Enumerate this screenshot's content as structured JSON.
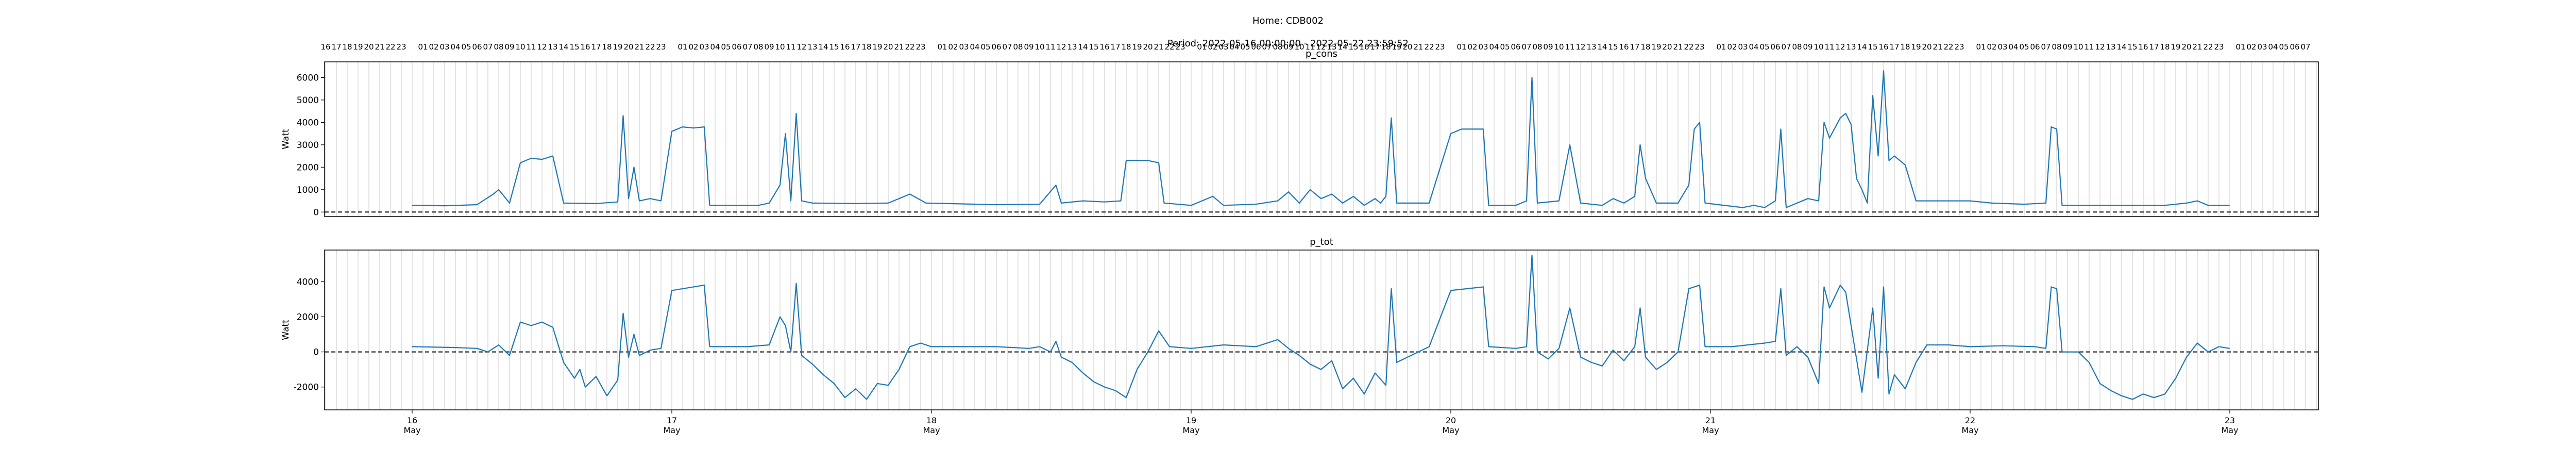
{
  "figure": {
    "title_line1": "Home: CDB002",
    "title_line2": "Period: 2022-05-16 00:00:00 - 2022-05-22 23:59:52"
  },
  "chart_data": [
    {
      "type": "line",
      "title": "p_cons",
      "ylabel": "Watt",
      "xlabel": "",
      "ylim": [
        -200,
        6700
      ],
      "yticks": [
        0,
        1000,
        2000,
        3000,
        4000,
        5000,
        6000
      ],
      "hline": 0,
      "grid": "vertical hourly",
      "series_color": "#1f77b4",
      "x_start": "2022-05-16 00:00",
      "x_end": "2022-05-22 23:59",
      "top_hour_labels_start": 16,
      "points": [
        [
          "2022-05-16 00:00",
          300
        ],
        [
          "2022-05-16 03:00",
          280
        ],
        [
          "2022-05-16 06:00",
          330
        ],
        [
          "2022-05-16 07:30",
          800
        ],
        [
          "2022-05-16 08:00",
          1000
        ],
        [
          "2022-05-16 09:00",
          400
        ],
        [
          "2022-05-16 10:00",
          2200
        ],
        [
          "2022-05-16 11:00",
          2400
        ],
        [
          "2022-05-16 12:00",
          2350
        ],
        [
          "2022-05-16 13:00",
          2500
        ],
        [
          "2022-05-16 14:00",
          400
        ],
        [
          "2022-05-16 17:00",
          380
        ],
        [
          "2022-05-16 19:00",
          450
        ],
        [
          "2022-05-16 19:30",
          4300
        ],
        [
          "2022-05-16 20:00",
          600
        ],
        [
          "2022-05-16 20:30",
          2000
        ],
        [
          "2022-05-16 21:00",
          500
        ],
        [
          "2022-05-16 22:00",
          600
        ],
        [
          "2022-05-16 23:00",
          500
        ],
        [
          "2022-05-17 00:00",
          3600
        ],
        [
          "2022-05-17 01:00",
          3800
        ],
        [
          "2022-05-17 02:00",
          3750
        ],
        [
          "2022-05-17 03:00",
          3800
        ],
        [
          "2022-05-17 03:30",
          300
        ],
        [
          "2022-05-17 08:00",
          300
        ],
        [
          "2022-05-17 09:00",
          400
        ],
        [
          "2022-05-17 10:00",
          1200
        ],
        [
          "2022-05-17 10:30",
          3500
        ],
        [
          "2022-05-17 11:00",
          500
        ],
        [
          "2022-05-17 11:30",
          4400
        ],
        [
          "2022-05-17 12:00",
          500
        ],
        [
          "2022-05-17 13:00",
          400
        ],
        [
          "2022-05-17 17:00",
          380
        ],
        [
          "2022-05-17 20:00",
          400
        ],
        [
          "2022-05-17 22:00",
          800
        ],
        [
          "2022-05-17 23:30",
          400
        ],
        [
          "2022-05-18 06:00",
          330
        ],
        [
          "2022-05-18 10:00",
          350
        ],
        [
          "2022-05-18 11:30",
          1200
        ],
        [
          "2022-05-18 12:00",
          400
        ],
        [
          "2022-05-18 14:00",
          500
        ],
        [
          "2022-05-18 16:00",
          450
        ],
        [
          "2022-05-18 17:30",
          500
        ],
        [
          "2022-05-18 18:00",
          2300
        ],
        [
          "2022-05-18 20:00",
          2300
        ],
        [
          "2022-05-18 21:00",
          2200
        ],
        [
          "2022-05-18 21:30",
          400
        ],
        [
          "2022-05-19 00:00",
          300
        ],
        [
          "2022-05-19 01:00",
          500
        ],
        [
          "2022-05-19 02:00",
          700
        ],
        [
          "2022-05-19 03:00",
          300
        ],
        [
          "2022-05-19 06:00",
          350
        ],
        [
          "2022-05-19 08:00",
          500
        ],
        [
          "2022-05-19 09:00",
          900
        ],
        [
          "2022-05-19 10:00",
          400
        ],
        [
          "2022-05-19 11:00",
          1000
        ],
        [
          "2022-05-19 12:00",
          600
        ],
        [
          "2022-05-19 13:00",
          800
        ],
        [
          "2022-05-19 14:00",
          400
        ],
        [
          "2022-05-19 15:00",
          700
        ],
        [
          "2022-05-19 16:00",
          300
        ],
        [
          "2022-05-19 17:00",
          600
        ],
        [
          "2022-05-19 17:30",
          400
        ],
        [
          "2022-05-19 18:00",
          700
        ],
        [
          "2022-05-19 18:30",
          4200
        ],
        [
          "2022-05-19 19:00",
          400
        ],
        [
          "2022-05-19 22:00",
          400
        ],
        [
          "2022-05-20 00:00",
          3500
        ],
        [
          "2022-05-20 01:00",
          3700
        ],
        [
          "2022-05-20 03:00",
          3700
        ],
        [
          "2022-05-20 03:30",
          300
        ],
        [
          "2022-05-20 06:00",
          300
        ],
        [
          "2022-05-20 07:00",
          500
        ],
        [
          "2022-05-20 07:30",
          6000
        ],
        [
          "2022-05-20 08:00",
          400
        ],
        [
          "2022-05-20 10:00",
          500
        ],
        [
          "2022-05-20 11:00",
          3000
        ],
        [
          "2022-05-20 12:00",
          400
        ],
        [
          "2022-05-20 14:00",
          300
        ],
        [
          "2022-05-20 15:00",
          600
        ],
        [
          "2022-05-20 16:00",
          400
        ],
        [
          "2022-05-20 17:00",
          700
        ],
        [
          "2022-05-20 17:30",
          3000
        ],
        [
          "2022-05-20 18:00",
          1500
        ],
        [
          "2022-05-20 19:00",
          400
        ],
        [
          "2022-05-20 21:00",
          400
        ],
        [
          "2022-05-20 22:00",
          1200
        ],
        [
          "2022-05-20 22:30",
          3700
        ],
        [
          "2022-05-20 23:00",
          4000
        ],
        [
          "2022-05-20 23:30",
          400
        ],
        [
          "2022-05-21 03:00",
          200
        ],
        [
          "2022-05-21 04:00",
          300
        ],
        [
          "2022-05-21 05:00",
          200
        ],
        [
          "2022-05-21 06:00",
          500
        ],
        [
          "2022-05-21 06:30",
          3700
        ],
        [
          "2022-05-21 07:00",
          200
        ],
        [
          "2022-05-21 08:00",
          400
        ],
        [
          "2022-05-21 09:00",
          600
        ],
        [
          "2022-05-21 10:00",
          500
        ],
        [
          "2022-05-21 10:30",
          4000
        ],
        [
          "2022-05-21 11:00",
          3300
        ],
        [
          "2022-05-21 12:00",
          4200
        ],
        [
          "2022-05-21 12:30",
          4400
        ],
        [
          "2022-05-21 13:00",
          3900
        ],
        [
          "2022-05-21 13:30",
          1500
        ],
        [
          "2022-05-21 14:00",
          1000
        ],
        [
          "2022-05-21 14:30",
          400
        ],
        [
          "2022-05-21 15:00",
          5200
        ],
        [
          "2022-05-21 15:30",
          2500
        ],
        [
          "2022-05-21 16:00",
          6300
        ],
        [
          "2022-05-21 16:30",
          2300
        ],
        [
          "2022-05-21 17:00",
          2500
        ],
        [
          "2022-05-21 18:00",
          2100
        ],
        [
          "2022-05-21 19:00",
          500
        ],
        [
          "2022-05-21 21:00",
          500
        ],
        [
          "2022-05-22 00:00",
          500
        ],
        [
          "2022-05-22 02:00",
          400
        ],
        [
          "2022-05-22 05:00",
          350
        ],
        [
          "2022-05-22 07:00",
          400
        ],
        [
          "2022-05-22 07:30",
          3800
        ],
        [
          "2022-05-22 08:00",
          3700
        ],
        [
          "2022-05-22 08:30",
          300
        ],
        [
          "2022-05-22 18:00",
          300
        ],
        [
          "2022-05-22 20:00",
          400
        ],
        [
          "2022-05-22 21:00",
          500
        ],
        [
          "2022-05-22 22:00",
          300
        ],
        [
          "2022-05-22 23:59",
          300
        ]
      ]
    },
    {
      "type": "line",
      "title": "p_tot",
      "ylabel": "Watt",
      "xlabel": "",
      "ylim": [
        -3300,
        5800
      ],
      "yticks": [
        -2000,
        0,
        2000,
        4000
      ],
      "hline": 0,
      "grid": "vertical hourly",
      "series_color": "#1f77b4",
      "x_start": "2022-05-16 00:00",
      "x_end": "2022-05-22 23:59",
      "date_ticks": [
        {
          "day": "16",
          "month": "May"
        },
        {
          "day": "17",
          "month": "May"
        },
        {
          "day": "18",
          "month": "May"
        },
        {
          "day": "19",
          "month": "May"
        },
        {
          "day": "20",
          "month": "May"
        },
        {
          "day": "21",
          "month": "May"
        },
        {
          "day": "22",
          "month": "May"
        },
        {
          "day": "23",
          "month": "May"
        }
      ],
      "points": [
        [
          "2022-05-16 00:00",
          300
        ],
        [
          "2022-05-16 04:00",
          250
        ],
        [
          "2022-05-16 06:00",
          200
        ],
        [
          "2022-05-16 07:00",
          0
        ],
        [
          "2022-05-16 08:00",
          400
        ],
        [
          "2022-05-16 09:00",
          -200
        ],
        [
          "2022-05-16 10:00",
          1700
        ],
        [
          "2022-05-16 11:00",
          1500
        ],
        [
          "2022-05-16 12:00",
          1700
        ],
        [
          "2022-05-16 13:00",
          1400
        ],
        [
          "2022-05-16 14:00",
          -600
        ],
        [
          "2022-05-16 15:00",
          -1500
        ],
        [
          "2022-05-16 15:30",
          -1000
        ],
        [
          "2022-05-16 16:00",
          -2000
        ],
        [
          "2022-05-16 17:00",
          -1400
        ],
        [
          "2022-05-16 18:00",
          -2500
        ],
        [
          "2022-05-16 19:00",
          -1600
        ],
        [
          "2022-05-16 19:30",
          2200
        ],
        [
          "2022-05-16 20:00",
          -300
        ],
        [
          "2022-05-16 20:30",
          1000
        ],
        [
          "2022-05-16 21:00",
          -200
        ],
        [
          "2022-05-16 22:00",
          100
        ],
        [
          "2022-05-16 23:00",
          200
        ],
        [
          "2022-05-17 00:00",
          3500
        ],
        [
          "2022-05-17 03:00",
          3800
        ],
        [
          "2022-05-17 03:30",
          300
        ],
        [
          "2022-05-17 07:00",
          300
        ],
        [
          "2022-05-17 09:00",
          400
        ],
        [
          "2022-05-17 10:00",
          2000
        ],
        [
          "2022-05-17 10:30",
          1500
        ],
        [
          "2022-05-17 11:00",
          0
        ],
        [
          "2022-05-17 11:30",
          3900
        ],
        [
          "2022-05-17 12:00",
          -200
        ],
        [
          "2022-05-17 13:00",
          -700
        ],
        [
          "2022-05-17 14:00",
          -1300
        ],
        [
          "2022-05-17 15:00",
          -1800
        ],
        [
          "2022-05-17 16:00",
          -2600
        ],
        [
          "2022-05-17 17:00",
          -2100
        ],
        [
          "2022-05-17 18:00",
          -2700
        ],
        [
          "2022-05-17 19:00",
          -1800
        ],
        [
          "2022-05-17 20:00",
          -1900
        ],
        [
          "2022-05-17 21:00",
          -1000
        ],
        [
          "2022-05-17 22:00",
          300
        ],
        [
          "2022-05-17 23:00",
          500
        ],
        [
          "2022-05-18 00:00",
          300
        ],
        [
          "2022-05-18 06:00",
          300
        ],
        [
          "2022-05-18 09:00",
          200
        ],
        [
          "2022-05-18 10:00",
          300
        ],
        [
          "2022-05-18 11:00",
          0
        ],
        [
          "2022-05-18 11:30",
          600
        ],
        [
          "2022-05-18 12:00",
          -300
        ],
        [
          "2022-05-18 13:00",
          -600
        ],
        [
          "2022-05-18 14:00",
          -1200
        ],
        [
          "2022-05-18 15:00",
          -1700
        ],
        [
          "2022-05-18 16:00",
          -2000
        ],
        [
          "2022-05-18 17:00",
          -2200
        ],
        [
          "2022-05-18 18:00",
          -2600
        ],
        [
          "2022-05-18 19:00",
          -1000
        ],
        [
          "2022-05-18 20:00",
          0
        ],
        [
          "2022-05-18 21:00",
          1200
        ],
        [
          "2022-05-18 22:00",
          300
        ],
        [
          "2022-05-19 00:00",
          200
        ],
        [
          "2022-05-19 03:00",
          400
        ],
        [
          "2022-05-19 06:00",
          300
        ],
        [
          "2022-05-19 08:00",
          700
        ],
        [
          "2022-05-19 09:00",
          200
        ],
        [
          "2022-05-19 10:00",
          -200
        ],
        [
          "2022-05-19 11:00",
          -700
        ],
        [
          "2022-05-19 12:00",
          -1000
        ],
        [
          "2022-05-19 13:00",
          -500
        ],
        [
          "2022-05-19 14:00",
          -2100
        ],
        [
          "2022-05-19 15:00",
          -1500
        ],
        [
          "2022-05-19 16:00",
          -2400
        ],
        [
          "2022-05-19 17:00",
          -1200
        ],
        [
          "2022-05-19 18:00",
          -1900
        ],
        [
          "2022-05-19 18:30",
          3600
        ],
        [
          "2022-05-19 19:00",
          -600
        ],
        [
          "2022-05-19 20:00",
          -300
        ],
        [
          "2022-05-19 21:00",
          0
        ],
        [
          "2022-05-19 22:00",
          300
        ],
        [
          "2022-05-20 00:00",
          3500
        ],
        [
          "2022-05-20 03:00",
          3700
        ],
        [
          "2022-05-20 03:30",
          300
        ],
        [
          "2022-05-20 06:00",
          200
        ],
        [
          "2022-05-20 07:00",
          300
        ],
        [
          "2022-05-20 07:30",
          5500
        ],
        [
          "2022-05-20 08:00",
          0
        ],
        [
          "2022-05-20 09:00",
          -400
        ],
        [
          "2022-05-20 10:00",
          200
        ],
        [
          "2022-05-20 11:00",
          2500
        ],
        [
          "2022-05-20 12:00",
          -300
        ],
        [
          "2022-05-20 13:00",
          -600
        ],
        [
          "2022-05-20 14:00",
          -800
        ],
        [
          "2022-05-20 15:00",
          100
        ],
        [
          "2022-05-20 16:00",
          -500
        ],
        [
          "2022-05-20 17:00",
          300
        ],
        [
          "2022-05-20 17:30",
          2500
        ],
        [
          "2022-05-20 18:00",
          -300
        ],
        [
          "2022-05-20 19:00",
          -1000
        ],
        [
          "2022-05-20 20:00",
          -600
        ],
        [
          "2022-05-20 21:00",
          0
        ],
        [
          "2022-05-20 22:00",
          3600
        ],
        [
          "2022-05-20 23:00",
          3800
        ],
        [
          "2022-05-20 23:30",
          300
        ],
        [
          "2022-05-21 02:00",
          300
        ],
        [
          "2022-05-21 05:00",
          500
        ],
        [
          "2022-05-21 06:00",
          600
        ],
        [
          "2022-05-21 06:30",
          3600
        ],
        [
          "2022-05-21 07:00",
          -200
        ],
        [
          "2022-05-21 08:00",
          300
        ],
        [
          "2022-05-21 09:00",
          -300
        ],
        [
          "2022-05-21 10:00",
          -1800
        ],
        [
          "2022-05-21 10:30",
          3700
        ],
        [
          "2022-05-21 11:00",
          2500
        ],
        [
          "2022-05-21 12:00",
          3800
        ],
        [
          "2022-05-21 12:30",
          3400
        ],
        [
          "2022-05-21 13:00",
          1500
        ],
        [
          "2022-05-21 14:00",
          -2300
        ],
        [
          "2022-05-21 15:00",
          2500
        ],
        [
          "2022-05-21 15:30",
          -1500
        ],
        [
          "2022-05-21 16:00",
          3700
        ],
        [
          "2022-05-21 16:30",
          -2400
        ],
        [
          "2022-05-21 17:00",
          -1300
        ],
        [
          "2022-05-21 18:00",
          -2100
        ],
        [
          "2022-05-21 19:00",
          -600
        ],
        [
          "2022-05-21 20:00",
          400
        ],
        [
          "2022-05-21 22:00",
          400
        ],
        [
          "2022-05-22 00:00",
          300
        ],
        [
          "2022-05-22 03:00",
          350
        ],
        [
          "2022-05-22 06:00",
          300
        ],
        [
          "2022-05-22 07:00",
          200
        ],
        [
          "2022-05-22 07:30",
          3700
        ],
        [
          "2022-05-22 08:00",
          3600
        ],
        [
          "2022-05-22 08:30",
          0
        ],
        [
          "2022-05-22 10:00",
          0
        ],
        [
          "2022-05-22 11:00",
          -600
        ],
        [
          "2022-05-22 12:00",
          -1800
        ],
        [
          "2022-05-22 13:00",
          -2200
        ],
        [
          "2022-05-22 14:00",
          -2500
        ],
        [
          "2022-05-22 15:00",
          -2700
        ],
        [
          "2022-05-22 16:00",
          -2400
        ],
        [
          "2022-05-22 17:00",
          -2600
        ],
        [
          "2022-05-22 18:00",
          -2400
        ],
        [
          "2022-05-22 19:00",
          -1500
        ],
        [
          "2022-05-22 20:00",
          -300
        ],
        [
          "2022-05-22 21:00",
          500
        ],
        [
          "2022-05-22 22:00",
          0
        ],
        [
          "2022-05-22 23:00",
          300
        ],
        [
          "2022-05-22 23:59",
          200
        ]
      ]
    }
  ]
}
